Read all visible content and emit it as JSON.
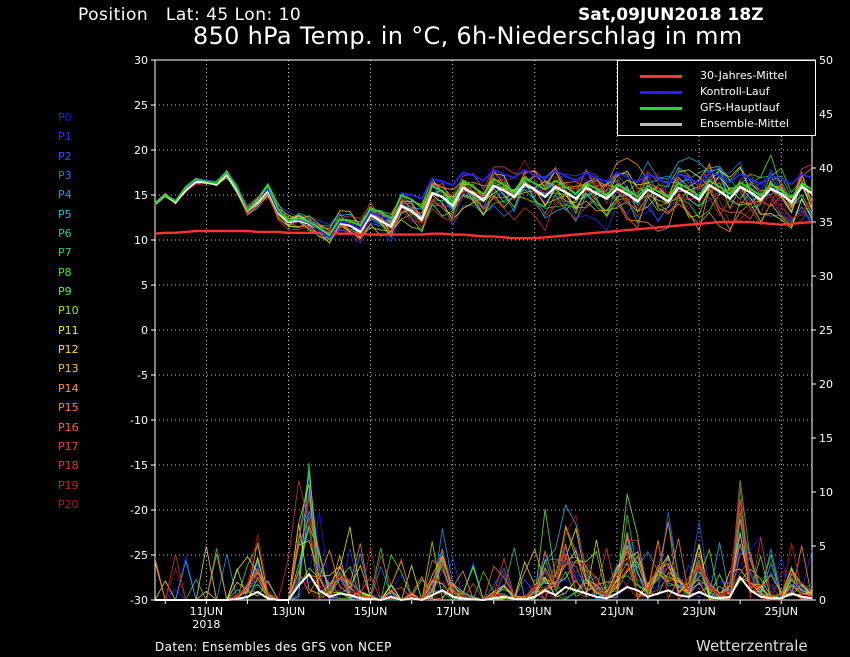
{
  "header": {
    "position": "Position   Lat: 45 Lon: 10",
    "datetime": "Sat,09JUN2018 18Z",
    "title": "850 hPa Temp. in °C, 6h-Niederschlag in mm"
  },
  "members": [
    {
      "label": "P0",
      "color": "#1a1aff"
    },
    {
      "label": "P1",
      "color": "#2233ff"
    },
    {
      "label": "P2",
      "color": "#2255ff"
    },
    {
      "label": "P3",
      "color": "#2277ff"
    },
    {
      "label": "P4",
      "color": "#2299ff"
    },
    {
      "label": "P5",
      "color": "#22bbee"
    },
    {
      "label": "P6",
      "color": "#22cc88"
    },
    {
      "label": "P7",
      "color": "#22dd55"
    },
    {
      "label": "P8",
      "color": "#33ee22"
    },
    {
      "label": "P9",
      "color": "#66ee22"
    },
    {
      "label": "P10",
      "color": "#99ee11"
    },
    {
      "label": "P11",
      "color": "#eeee11"
    },
    {
      "label": "P12",
      "color": "#ffdd22"
    },
    {
      "label": "P13",
      "color": "#ffbb22"
    },
    {
      "label": "P14",
      "color": "#ff9922"
    },
    {
      "label": "P15",
      "color": "#ff8833"
    },
    {
      "label": "P16",
      "color": "#ff6633"
    },
    {
      "label": "P17",
      "color": "#ee4433"
    },
    {
      "label": "P18",
      "color": "#dd3333"
    },
    {
      "label": "P19",
      "color": "#cc2222"
    },
    {
      "label": "P20",
      "color": "#bb1111"
    }
  ],
  "legend": [
    {
      "label": "30-Jahres-Mittel",
      "color": "#ff3333"
    },
    {
      "label": "Kontroll-Lauf",
      "color": "#2222ff"
    },
    {
      "label": "GFS-Hauptlauf",
      "color": "#22dd22"
    },
    {
      "label": "Ensemble-Mittel",
      "color": "#bbbbbb"
    }
  ],
  "footer": {
    "source": "Daten: Ensembles des GFS von NCEP",
    "brand": "Wetterzentrale"
  },
  "chart_data": {
    "type": "line",
    "x_tick_labels": [
      "11JUN\n2018",
      "13JUN",
      "15JUN",
      "17JUN",
      "19JUN",
      "21JUN",
      "23JUN",
      "25JUN"
    ],
    "left_axis": {
      "min": -30,
      "max": 30,
      "step": 5,
      "quantity": "850 hPa Temp. in °C"
    },
    "right_axis": {
      "min": 0,
      "max": 50,
      "step": 5,
      "quantity": "6h-Niederschlag in mm"
    },
    "grid": true,
    "legend_position": "top-right",
    "time_steps": "6h, 09JUN 18Z to 25JUN 18Z (65 steps)",
    "series": [
      {
        "name": "30-Jahres-Mittel",
        "axis": "left",
        "color": "#ff3333",
        "values": [
          10.7,
          10.8,
          10.8,
          10.9,
          11,
          11,
          11,
          11,
          11,
          11,
          10.9,
          10.9,
          10.9,
          10.8,
          10.8,
          10.8,
          10.8,
          10.8,
          10.7,
          10.7,
          10.7,
          10.6,
          10.6,
          10.6,
          10.6,
          10.6,
          10.6,
          10.7,
          10.7,
          10.6,
          10.6,
          10.5,
          10.4,
          10.4,
          10.3,
          10.2,
          10.2,
          10.2,
          10.3,
          10.4,
          10.5,
          10.6,
          10.7,
          10.8,
          10.9,
          11,
          11.1,
          11.2,
          11.3,
          11.4,
          11.5,
          11.6,
          11.7,
          11.8,
          11.9,
          12,
          12,
          12,
          12,
          11.9,
          11.8,
          11.7,
          11.8,
          11.9,
          12
        ]
      },
      {
        "name": "Ensemble-Mittel",
        "axis": "left",
        "color": "#ffffff",
        "values": [
          14,
          15,
          14.2,
          15.6,
          16.5,
          16.4,
          16.2,
          17.3,
          15.5,
          13.3,
          14.2,
          15.5,
          13.1,
          12,
          12.2,
          11.8,
          11.2,
          10.5,
          11.9,
          11.6,
          10.9,
          12.8,
          12.1,
          11.5,
          13.8,
          13.2,
          12.3,
          15.2,
          14.8,
          13.8,
          15.8,
          15.2,
          14.4,
          16,
          15.5,
          14.8,
          16.2,
          15.6,
          14.8,
          15.9,
          15.3,
          14.6,
          15.8,
          15.2,
          14.6,
          15.7,
          15.1,
          14.3,
          15.6,
          15,
          14.3,
          15.8,
          15.2,
          14.5,
          16.1,
          15.4,
          14.6,
          15.9,
          15.3,
          14.5,
          15.7,
          15.1,
          14.2,
          15.9,
          15.2
        ]
      },
      {
        "name": "Kontroll-Lauf",
        "axis": "left",
        "color": "#2222ff",
        "values": [
          14,
          15,
          14.4,
          15.8,
          16.7,
          16.6,
          16.4,
          17.5,
          15.8,
          13.4,
          14.4,
          15.7,
          13.2,
          12.2,
          12.3,
          11.9,
          11.1,
          10.3,
          12,
          11.8,
          11.2,
          13.1,
          12.6,
          12.3,
          15.2,
          15,
          14.6,
          16.8,
          16.5,
          16.1,
          17.5,
          17.2,
          16.6,
          17.8,
          17.3,
          16.9,
          17.8,
          17.2,
          16.8,
          17.7,
          17.1,
          16.6,
          17.4,
          16.9,
          16.5,
          17.5,
          17,
          16.4,
          17.3,
          16.8,
          16.2,
          17.3,
          16.9,
          16.3,
          17.6,
          17.1,
          16.4,
          17.3,
          16.8,
          16.2,
          17.2,
          16.8,
          16.2,
          17.3,
          16.9
        ]
      },
      {
        "name": "GFS-Hauptlauf",
        "axis": "left",
        "color": "#22dd22",
        "values": [
          14,
          15,
          14.3,
          15.9,
          16.8,
          16.5,
          16.3,
          17.6,
          15.7,
          13.3,
          14.4,
          16.1,
          13.4,
          12.1,
          12.4,
          12,
          11.3,
          10.6,
          12.3,
          12.1,
          11.6,
          13.5,
          13.1,
          12.4,
          15,
          14.5,
          13.6,
          16,
          15.4,
          14.2,
          16.6,
          15.9,
          15.1,
          16.8,
          16.1,
          15.3,
          16.9,
          16.3,
          15.6,
          16.6,
          15.9,
          15.1,
          16.3,
          15.7,
          15,
          16.2,
          15.6,
          14.8,
          16,
          15.4,
          14.7,
          16.3,
          15.7,
          14.9,
          16.6,
          15.9,
          15.1,
          16.4,
          15.7,
          14.9,
          16.2,
          15.5,
          14.7,
          16.3,
          15.6
        ]
      },
      {
        "name": "P member precipitation (mm, right axis)",
        "axis": "right",
        "color": "#aaaaaa",
        "values": [
          0,
          0,
          0,
          0,
          0,
          0,
          0,
          0,
          0.3,
          1,
          2.5,
          0.5,
          0,
          0,
          4.5,
          8,
          3,
          1,
          2,
          1.5,
          0.5,
          0.3,
          0,
          1,
          0,
          0.5,
          0,
          1.5,
          3,
          1,
          0.5,
          0.2,
          0,
          0.5,
          1,
          0.3,
          0.2,
          1,
          3,
          1.5,
          4,
          3,
          2,
          1,
          0.5,
          2,
          4,
          3,
          1,
          2,
          3,
          1.5,
          1,
          2.5,
          1,
          0.5,
          1,
          7,
          3,
          1,
          0.5,
          0.5,
          2,
          1,
          0.5
        ]
      }
    ]
  }
}
